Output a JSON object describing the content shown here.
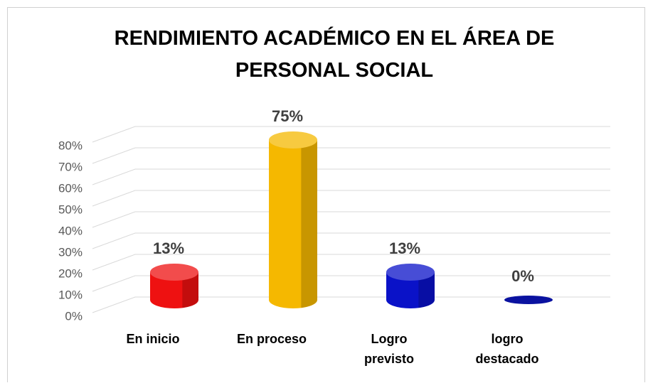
{
  "chart_data": {
    "type": "bar3d",
    "title": "RENDIMIENTO ACADÉMICO EN EL ÁREA DE PERSONAL SOCIAL",
    "categories": [
      "En inicio",
      "En proceso",
      "Logro previsto",
      "logro destacado"
    ],
    "values": [
      13,
      75,
      13,
      0
    ],
    "value_labels": [
      "13%",
      "75%",
      "13%",
      "0%"
    ],
    "colors": [
      "#ee1111",
      "#f5b800",
      "#0a12c8",
      "#0a12a0"
    ],
    "ylim": [
      0,
      80
    ],
    "yticks": [
      {
        "value": 0,
        "label": "0%"
      },
      {
        "value": 10,
        "label": "10%"
      },
      {
        "value": 20,
        "label": "20%"
      },
      {
        "value": 30,
        "label": "30%"
      },
      {
        "value": 40,
        "label": "40%"
      },
      {
        "value": 50,
        "label": "50%"
      },
      {
        "value": 60,
        "label": "60%"
      },
      {
        "value": 70,
        "label": "70%"
      },
      {
        "value": 80,
        "label": "80%"
      }
    ],
    "grid": true
  }
}
